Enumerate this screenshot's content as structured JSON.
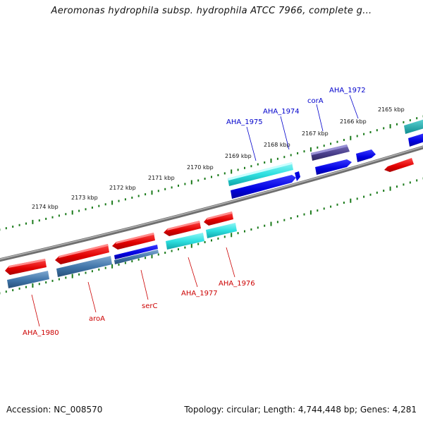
{
  "title": "Aeromonas hydrophila subsp. hydrophila ATCC 7966, complete g...",
  "footer": {
    "accession": "Accession: NC_008570",
    "summary": "Topology: circular; Length: 4,744,448 bp; Genes: 4,281"
  },
  "colors": {
    "forward_cds": "#0000dd",
    "forward_alt": "#2ad6d6",
    "reverse_cds": "#dd0000",
    "reverse_alt": "#3d7ab0",
    "complex": "#4a3f8c",
    "backbone": "#808080",
    "ticks": "#1a7a1a",
    "label_blue": "#0000cc",
    "label_red": "#cc0000"
  },
  "scale": {
    "unit": "kbp",
    "ticks": [
      {
        "label": "2174 kbp"
      },
      {
        "label": "2173 kbp"
      },
      {
        "label": "2172 kbp"
      },
      {
        "label": "2171 kbp"
      },
      {
        "label": "2170 kbp"
      },
      {
        "label": "2169 kbp"
      },
      {
        "label": "2168 kbp"
      },
      {
        "label": "2167 kbp"
      },
      {
        "label": "2166 kbp"
      },
      {
        "label": "2165 kbp"
      }
    ]
  },
  "genes": {
    "forward_labels": [
      "AHA_1975",
      "AHA_1974",
      "corA",
      "AHA_1972"
    ],
    "reverse_labels": [
      "AHA_1980",
      "aroA",
      "serC",
      "AHA_1977",
      "AHA_1976"
    ]
  }
}
